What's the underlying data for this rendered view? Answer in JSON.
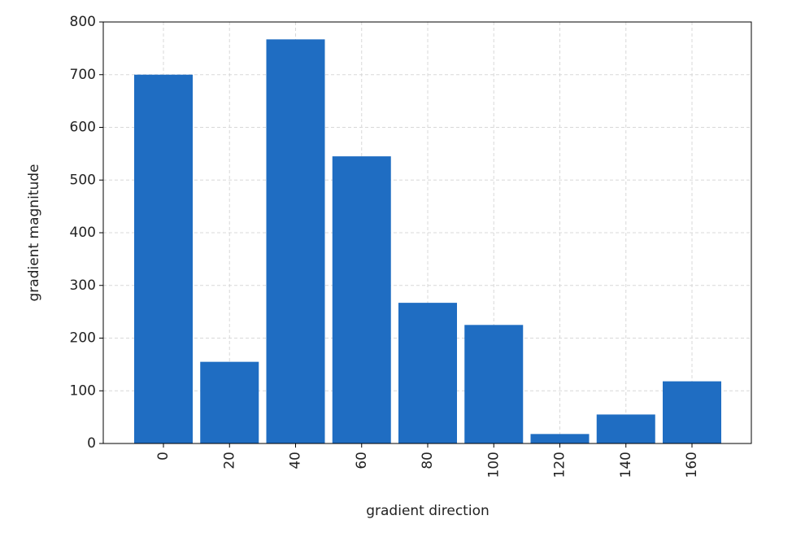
{
  "chart_data": {
    "type": "bar",
    "x_label": "gradient direction",
    "y_label": "gradient magnitude",
    "categories": [
      "0",
      "20",
      "40",
      "60",
      "80",
      "100",
      "120",
      "140",
      "160"
    ],
    "values": [
      700,
      155,
      767,
      545,
      267,
      225,
      18,
      55,
      118
    ],
    "color": "#1f6dc2",
    "ylim": [
      0,
      800
    ],
    "yticks": [
      0,
      100,
      200,
      300,
      400,
      500,
      600,
      700,
      800
    ],
    "grid": true
  }
}
